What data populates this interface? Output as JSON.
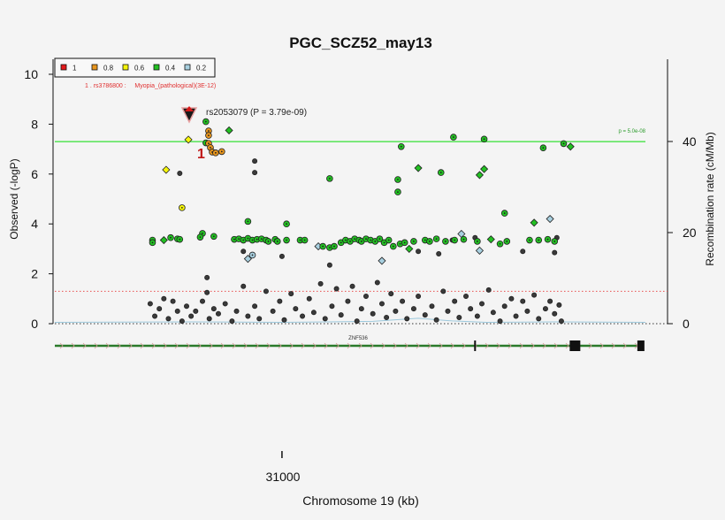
{
  "chart_data": {
    "type": "scatter",
    "title": "PGC_SCZ52_may13",
    "xlabel": "Chromosome 19 (kb)",
    "ylabel": "Observed (-logP)",
    "ylabel_right": "Recombination rate (cM/Mb)",
    "xlim": [
      30900,
      31160
    ],
    "ylim": [
      0,
      10
    ],
    "ylim_right": [
      0,
      55
    ],
    "x_ticks": [
      "31000"
    ],
    "y_ticks": [
      "0",
      "2",
      "4",
      "6",
      "8",
      "10"
    ],
    "y_ticks_right": [
      "0",
      "20",
      "40"
    ],
    "grid": false,
    "legend": {
      "placement": "top-left",
      "entries": [
        {
          "label": "1",
          "color": "#e41a1c"
        },
        {
          "label": "0.8",
          "color": "#e8961e"
        },
        {
          "label": "0.6",
          "color": "#f5f50a"
        },
        {
          "label": "0.4",
          "color": "#22c022"
        },
        {
          "label": "0.2",
          "color": "#a8d0e0"
        }
      ]
    },
    "ld_colors": {
      "1": "#e41a1c",
      "0.8": "#e8961e",
      "0.6": "#f5f50a",
      "0.4": "#22c022",
      "0.2": "#a8d0e0",
      "none": "#3a3a3a"
    },
    "significance_line": {
      "p": "p = 5.0e-08",
      "y": 7.3,
      "color": "#33e033"
    },
    "suggestive_line": {
      "y": 1.3,
      "color": "#e85050"
    },
    "annotation": "1 . rs3786800 :     Myopia_(pathological)(3E-12)",
    "annotation_marker": "1",
    "top_snp": {
      "label": "rs2053079 (P = 3.79e-09)",
      "x": 30959,
      "y": 8.42
    },
    "gene": {
      "name": "ZNF536",
      "start": 30900,
      "end": 31158,
      "exons": [
        31085,
        31129,
        31158
      ]
    },
    "recombination": {
      "x": [
        30900,
        30960,
        31000,
        31040,
        31060,
        31075,
        31090,
        31120,
        31160
      ],
      "y": [
        0.3,
        0.4,
        0.3,
        0.5,
        1.2,
        0.6,
        0.3,
        0.4,
        0.3
      ]
    },
    "points": [
      [
        30967.7,
        7.73,
        "0.8",
        "circle"
      ],
      [
        30967.7,
        7.55,
        "0.8",
        "circle"
      ],
      [
        30967.7,
        7.23,
        "0.8",
        "circle"
      ],
      [
        30968.5,
        7.06,
        "0.8",
        "circle"
      ],
      [
        30969.3,
        6.88,
        "0.8",
        "circle"
      ],
      [
        30970.8,
        6.85,
        "0.8",
        "circle"
      ],
      [
        30973.5,
        6.9,
        "0.8",
        "circle"
      ],
      [
        30958.8,
        7.38,
        "0.6",
        "diamond"
      ],
      [
        30949,
        6.17,
        "0.6",
        "diamond"
      ],
      [
        30956,
        4.65,
        "0.6",
        "circle"
      ],
      [
        30966.5,
        8.1,
        "0.4",
        "circle"
      ],
      [
        30966.5,
        7.25,
        "0.4",
        "circle"
      ],
      [
        30976.7,
        7.75,
        "0.4",
        "diamond"
      ],
      [
        31052.5,
        7.1,
        "0.4",
        "circle"
      ],
      [
        31075.5,
        7.48,
        "0.4",
        "circle"
      ],
      [
        31089,
        7.4,
        "0.4",
        "circle"
      ],
      [
        31060,
        6.24,
        "0.4",
        "diamond"
      ],
      [
        31070,
        6.06,
        "0.4",
        "circle"
      ],
      [
        31089,
        6.2,
        "0.4",
        "diamond"
      ],
      [
        31087,
        5.96,
        "0.4",
        "diamond"
      ],
      [
        31051,
        5.78,
        "0.4",
        "circle"
      ],
      [
        31051,
        5.28,
        "0.4",
        "circle"
      ],
      [
        31021,
        5.82,
        "0.4",
        "circle"
      ],
      [
        31115,
        7.05,
        "0.4",
        "circle"
      ],
      [
        31124,
        7.22,
        "0.4",
        "circle"
      ],
      [
        31127,
        7.1,
        "0.4",
        "diamond"
      ],
      [
        30988,
        6.52,
        "none",
        "circle"
      ],
      [
        30988,
        6.06,
        "none",
        "circle"
      ],
      [
        30955,
        6.03,
        "none",
        "circle"
      ],
      [
        30943,
        3.35,
        "0.4",
        "circle"
      ],
      [
        30943,
        3.25,
        "0.4",
        "circle"
      ],
      [
        30948,
        3.35,
        "0.4",
        "diamond"
      ],
      [
        30951,
        3.45,
        "0.4",
        "circle"
      ],
      [
        30954,
        3.4,
        "0.4",
        "circle"
      ],
      [
        30955,
        3.38,
        "0.4",
        "circle"
      ],
      [
        30965,
        3.62,
        "0.4",
        "circle"
      ],
      [
        30970,
        3.5,
        "0.4",
        "circle"
      ],
      [
        30979,
        3.38,
        "0.4",
        "circle"
      ],
      [
        30981,
        3.4,
        "0.4",
        "circle"
      ],
      [
        30983,
        3.35,
        "0.4",
        "circle"
      ],
      [
        30985,
        3.42,
        "0.4",
        "circle"
      ],
      [
        30985,
        4.1,
        "0.4",
        "circle"
      ],
      [
        30987,
        3.35,
        "0.4",
        "circle"
      ],
      [
        30989,
        3.38,
        "0.4",
        "circle"
      ],
      [
        30991,
        3.4,
        "0.4",
        "circle"
      ],
      [
        30993,
        3.35,
        "0.4",
        "circle"
      ],
      [
        30994,
        3.3,
        "0.4",
        "circle"
      ],
      [
        30997,
        3.38,
        "0.4",
        "circle"
      ],
      [
        30998,
        3.3,
        "0.4",
        "circle"
      ],
      [
        31002,
        3.35,
        "0.4",
        "circle"
      ],
      [
        31002,
        4.0,
        "0.4",
        "circle"
      ],
      [
        31008,
        3.35,
        "0.4",
        "circle"
      ],
      [
        31010,
        3.35,
        "0.4",
        "circle"
      ],
      [
        31018,
        3.1,
        "0.4",
        "circle"
      ],
      [
        31021,
        3.05,
        "0.4",
        "circle"
      ],
      [
        31023,
        3.1,
        "0.4",
        "circle"
      ],
      [
        31026,
        3.25,
        "0.4",
        "circle"
      ],
      [
        31028,
        3.35,
        "0.4",
        "circle"
      ],
      [
        31030,
        3.3,
        "0.4",
        "circle"
      ],
      [
        31032,
        3.4,
        "0.4",
        "circle"
      ],
      [
        31034,
        3.35,
        "0.4",
        "circle"
      ],
      [
        31035,
        3.3,
        "0.4",
        "circle"
      ],
      [
        31037,
        3.4,
        "0.4",
        "circle"
      ],
      [
        31039,
        3.35,
        "0.4",
        "circle"
      ],
      [
        31041,
        3.3,
        "0.4",
        "circle"
      ],
      [
        31043,
        3.4,
        "0.4",
        "circle"
      ],
      [
        31045,
        3.25,
        "0.4",
        "circle"
      ],
      [
        31047,
        3.35,
        "0.4",
        "circle"
      ],
      [
        31049,
        3.1,
        "0.4",
        "circle"
      ],
      [
        31052,
        3.2,
        "0.4",
        "circle"
      ],
      [
        31054,
        3.25,
        "0.4",
        "circle"
      ],
      [
        31056,
        3.0,
        "0.4",
        "diamond"
      ],
      [
        31058,
        3.3,
        "0.4",
        "circle"
      ],
      [
        31063,
        3.35,
        "0.4",
        "circle"
      ],
      [
        31065,
        3.3,
        "0.4",
        "circle"
      ],
      [
        31068,
        3.4,
        "0.4",
        "circle"
      ],
      [
        31072,
        3.3,
        "0.4",
        "circle"
      ],
      [
        31076,
        3.35,
        "0.4",
        "circle"
      ],
      [
        31080,
        3.38,
        "0.4",
        "circle"
      ],
      [
        31086,
        3.3,
        "0.4",
        "circle"
      ],
      [
        31092,
        3.38,
        "0.4",
        "diamond"
      ],
      [
        31096,
        3.2,
        "0.4",
        "circle"
      ],
      [
        31099,
        3.3,
        "0.4",
        "circle"
      ],
      [
        31098,
        4.43,
        "0.4",
        "circle"
      ],
      [
        31109,
        3.35,
        "0.4",
        "circle"
      ],
      [
        31111,
        4.05,
        "0.4",
        "diamond"
      ],
      [
        31113,
        3.35,
        "0.4",
        "circle"
      ],
      [
        31117,
        3.38,
        "0.4",
        "circle"
      ],
      [
        31120,
        3.3,
        "0.4",
        "circle"
      ],
      [
        30964,
        3.47,
        "0.4",
        "circle"
      ],
      [
        31016,
        3.1,
        "0.2",
        "diamond"
      ],
      [
        31044,
        2.52,
        "0.2",
        "diamond"
      ],
      [
        30985,
        2.6,
        "0.2",
        "diamond"
      ],
      [
        31079,
        3.6,
        "0.2",
        "diamond"
      ],
      [
        31087,
        2.93,
        "0.2",
        "diamond"
      ],
      [
        31118,
        4.2,
        "0.2",
        "diamond"
      ],
      [
        30987,
        2.75,
        "0.2",
        "circle"
      ],
      [
        30983,
        2.9,
        "none",
        "circle"
      ],
      [
        31021,
        2.35,
        "none",
        "circle"
      ],
      [
        31060,
        2.9,
        "none",
        "circle"
      ],
      [
        31075,
        3.35,
        "none",
        "circle"
      ],
      [
        31085,
        3.45,
        "none",
        "circle"
      ],
      [
        31121,
        3.45,
        "none",
        "circle"
      ],
      [
        31106,
        2.9,
        "none",
        "circle"
      ],
      [
        30967,
        1.85,
        "none",
        "circle"
      ],
      [
        31069,
        2.8,
        "none",
        "circle"
      ],
      [
        31120,
        2.85,
        "none",
        "circle"
      ],
      [
        31000,
        2.7,
        "none",
        "circle"
      ],
      [
        30942,
        0.8,
        "none",
        "circle"
      ],
      [
        30944,
        0.3,
        "none",
        "circle"
      ],
      [
        30946,
        0.6,
        "none",
        "circle"
      ],
      [
        30948,
        1.0,
        "none",
        "circle"
      ],
      [
        30950,
        0.2,
        "none",
        "circle"
      ],
      [
        30952,
        0.9,
        "none",
        "circle"
      ],
      [
        30954,
        0.5,
        "none",
        "circle"
      ],
      [
        30956,
        0.1,
        "none",
        "circle"
      ],
      [
        30958,
        0.7,
        "none",
        "circle"
      ],
      [
        30960,
        0.3,
        "none",
        "circle"
      ],
      [
        30962,
        0.5,
        "none",
        "circle"
      ],
      [
        30965,
        0.9,
        "none",
        "circle"
      ],
      [
        30967,
        1.25,
        "none",
        "circle"
      ],
      [
        30968,
        0.2,
        "none",
        "circle"
      ],
      [
        30970,
        0.6,
        "none",
        "circle"
      ],
      [
        30972,
        0.4,
        "none",
        "circle"
      ],
      [
        30975,
        0.8,
        "none",
        "circle"
      ],
      [
        30978,
        0.1,
        "none",
        "circle"
      ],
      [
        30980,
        0.5,
        "none",
        "circle"
      ],
      [
        30983,
        1.5,
        "none",
        "circle"
      ],
      [
        30985,
        0.3,
        "none",
        "circle"
      ],
      [
        30988,
        0.7,
        "none",
        "circle"
      ],
      [
        30990,
        0.2,
        "none",
        "circle"
      ],
      [
        30993,
        1.3,
        "none",
        "circle"
      ],
      [
        30996,
        0.5,
        "none",
        "circle"
      ],
      [
        30999,
        0.9,
        "none",
        "circle"
      ],
      [
        31001,
        0.15,
        "none",
        "circle"
      ],
      [
        31004,
        1.2,
        "none",
        "circle"
      ],
      [
        31006,
        0.6,
        "none",
        "circle"
      ],
      [
        31009,
        0.3,
        "none",
        "circle"
      ],
      [
        31012,
        1.0,
        "none",
        "circle"
      ],
      [
        31014,
        0.45,
        "none",
        "circle"
      ],
      [
        31017,
        1.6,
        "none",
        "circle"
      ],
      [
        31019,
        0.2,
        "none",
        "circle"
      ],
      [
        31022,
        0.7,
        "none",
        "circle"
      ],
      [
        31024,
        1.4,
        "none",
        "circle"
      ],
      [
        31026,
        0.35,
        "none",
        "circle"
      ],
      [
        31029,
        0.9,
        "none",
        "circle"
      ],
      [
        31031,
        1.5,
        "none",
        "circle"
      ],
      [
        31033,
        0.1,
        "none",
        "circle"
      ],
      [
        31035,
        0.6,
        "none",
        "circle"
      ],
      [
        31037,
        1.1,
        "none",
        "circle"
      ],
      [
        31040,
        0.4,
        "none",
        "circle"
      ],
      [
        31042,
        1.65,
        "none",
        "circle"
      ],
      [
        31044,
        0.8,
        "none",
        "circle"
      ],
      [
        31046,
        0.25,
        "none",
        "circle"
      ],
      [
        31048,
        1.2,
        "none",
        "circle"
      ],
      [
        31050,
        0.5,
        "none",
        "circle"
      ],
      [
        31053,
        0.9,
        "none",
        "circle"
      ],
      [
        31055,
        0.2,
        "none",
        "circle"
      ],
      [
        31058,
        0.6,
        "none",
        "circle"
      ],
      [
        31060,
        1.1,
        "none",
        "circle"
      ],
      [
        31063,
        0.35,
        "none",
        "circle"
      ],
      [
        31066,
        0.7,
        "none",
        "circle"
      ],
      [
        31068,
        0.15,
        "none",
        "circle"
      ],
      [
        31071,
        1.3,
        "none",
        "circle"
      ],
      [
        31073,
        0.5,
        "none",
        "circle"
      ],
      [
        31076,
        0.9,
        "none",
        "circle"
      ],
      [
        31078,
        0.25,
        "none",
        "circle"
      ],
      [
        31081,
        1.1,
        "none",
        "circle"
      ],
      [
        31083,
        0.6,
        "none",
        "circle"
      ],
      [
        31086,
        0.3,
        "none",
        "circle"
      ],
      [
        31088,
        0.8,
        "none",
        "circle"
      ],
      [
        31091,
        1.35,
        "none",
        "circle"
      ],
      [
        31093,
        0.45,
        "none",
        "circle"
      ],
      [
        31096,
        0.1,
        "none",
        "circle"
      ],
      [
        31098,
        0.7,
        "none",
        "circle"
      ],
      [
        31101,
        1.0,
        "none",
        "circle"
      ],
      [
        31103,
        0.3,
        "none",
        "circle"
      ],
      [
        31106,
        0.9,
        "none",
        "circle"
      ],
      [
        31108,
        0.5,
        "none",
        "circle"
      ],
      [
        31111,
        1.15,
        "none",
        "circle"
      ],
      [
        31113,
        0.2,
        "none",
        "circle"
      ],
      [
        31116,
        0.6,
        "none",
        "circle"
      ],
      [
        31118,
        0.9,
        "none",
        "circle"
      ],
      [
        31120,
        0.4,
        "none",
        "circle"
      ],
      [
        31122,
        0.75,
        "none",
        "circle"
      ],
      [
        31123,
        0.1,
        "none",
        "circle"
      ]
    ]
  }
}
